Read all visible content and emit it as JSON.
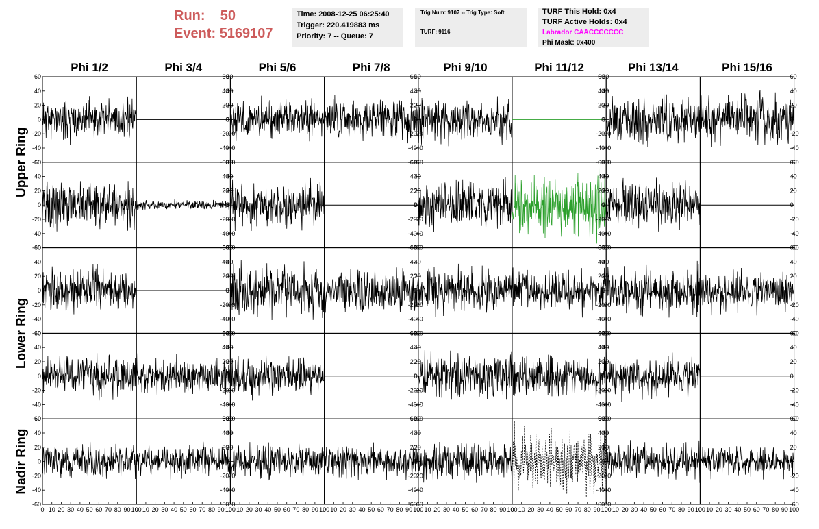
{
  "header": {
    "run_label": "Run:",
    "run_value": "50",
    "event_label": "Event:",
    "event_value": "5169107"
  },
  "info_boxes": {
    "time": "Time: 2008-12-25 06:25:40",
    "trigger": "Trigger: 220.419883 ms",
    "priority": "Priority: 7 -- Queue: 7",
    "trig_num": "Trig Num: 9107 -- Trig Type: Soft",
    "turf": "TURF: 9116",
    "turf_this_hold": "TURF This Hold: 0x4",
    "turf_active_holds": "TURF Active Holds: 0x4",
    "labrador": "Labrador CAACCCCCCC",
    "phi_mask": "Phi Mask: 0x400"
  },
  "colors": {
    "header_red": "#cd5c5c",
    "labrador_magenta": "#ff00ff",
    "trace_black": "#000000",
    "trace_green": "#2ca02c",
    "box_gray": "#ededed"
  },
  "chart_data": {
    "type": "line",
    "layout": "grid of waveform panels, 8 phi columns by 5 ring rows",
    "columns": [
      "Phi 1/2",
      "Phi 3/4",
      "Phi 5/6",
      "Phi 7/8",
      "Phi 9/10",
      "Phi 11/12",
      "Phi 13/14",
      "Phi 15/16"
    ],
    "row_labels": [
      {
        "label": "Upper Ring",
        "rows": [
          0,
          1
        ]
      },
      {
        "label": "Lower Ring",
        "rows": [
          2,
          3
        ]
      },
      {
        "label": "Nadir Ring",
        "rows": [
          4
        ]
      }
    ],
    "xlim": [
      0,
      100
    ],
    "ylim": [
      -60,
      60
    ],
    "x_tick_labels": [
      "0",
      "10",
      "20",
      "30",
      "40",
      "50",
      "60",
      "70",
      "80",
      "90",
      "100"
    ],
    "y_tick_labels": [
      "-60",
      "-40",
      "-20",
      "0",
      "20",
      "40",
      "60"
    ],
    "panels": [
      {
        "row": 0,
        "col": 0,
        "kind": "noise",
        "amplitude": 13,
        "seed": 11
      },
      {
        "row": 0,
        "col": 1,
        "kind": "flat"
      },
      {
        "row": 0,
        "col": 2,
        "kind": "noise",
        "amplitude": 13,
        "seed": 13
      },
      {
        "row": 0,
        "col": 3,
        "kind": "noise",
        "amplitude": 13,
        "seed": 14
      },
      {
        "row": 0,
        "col": 4,
        "kind": "noise",
        "amplitude": 14,
        "seed": 15
      },
      {
        "row": 0,
        "col": 5,
        "kind": "flat",
        "color": "green"
      },
      {
        "row": 0,
        "col": 6,
        "kind": "noise",
        "amplitude": 15,
        "seed": 17
      },
      {
        "row": 0,
        "col": 7,
        "kind": "noise",
        "amplitude": 15,
        "seed": 18,
        "end_spike": 52
      },
      {
        "row": 1,
        "col": 0,
        "kind": "noise",
        "amplitude": 15,
        "seed": 21
      },
      {
        "row": 1,
        "col": 1,
        "kind": "noise",
        "amplitude": 3,
        "seed": 22
      },
      {
        "row": 1,
        "col": 2,
        "kind": "noise",
        "amplitude": 15,
        "seed": 23
      },
      {
        "row": 1,
        "col": 3,
        "kind": "flat"
      },
      {
        "row": 1,
        "col": 4,
        "kind": "noise",
        "amplitude": 15,
        "seed": 25
      },
      {
        "row": 1,
        "col": 5,
        "kind": "noise",
        "amplitude": 20,
        "seed": 26,
        "color": "green"
      },
      {
        "row": 1,
        "col": 6,
        "kind": "noise",
        "amplitude": 14,
        "seed": 27
      },
      {
        "row": 1,
        "col": 7,
        "kind": "flat"
      },
      {
        "row": 2,
        "col": 0,
        "kind": "noise",
        "amplitude": 14,
        "seed": 31
      },
      {
        "row": 2,
        "col": 1,
        "kind": "flat"
      },
      {
        "row": 2,
        "col": 2,
        "kind": "noise",
        "amplitude": 17,
        "seed": 33
      },
      {
        "row": 2,
        "col": 3,
        "kind": "noise",
        "amplitude": 14,
        "seed": 34
      },
      {
        "row": 2,
        "col": 4,
        "kind": "noise",
        "amplitude": 14,
        "seed": 35
      },
      {
        "row": 2,
        "col": 5,
        "kind": "noise",
        "amplitude": 14,
        "seed": 36
      },
      {
        "row": 2,
        "col": 6,
        "kind": "noise",
        "amplitude": 15,
        "seed": 37
      },
      {
        "row": 2,
        "col": 7,
        "kind": "noise",
        "amplitude": 13,
        "seed": 38
      },
      {
        "row": 3,
        "col": 0,
        "kind": "noise",
        "amplitude": 13,
        "seed": 41
      },
      {
        "row": 3,
        "col": 1,
        "kind": "noise",
        "amplitude": 12,
        "seed": 42
      },
      {
        "row": 3,
        "col": 2,
        "kind": "noise",
        "amplitude": 13,
        "seed": 43
      },
      {
        "row": 3,
        "col": 3,
        "kind": "flat"
      },
      {
        "row": 3,
        "col": 4,
        "kind": "noise",
        "amplitude": 16,
        "seed": 45
      },
      {
        "row": 3,
        "col": 5,
        "kind": "noise",
        "amplitude": 13,
        "seed": 46
      },
      {
        "row": 3,
        "col": 6,
        "kind": "noise",
        "amplitude": 13,
        "seed": 47
      },
      {
        "row": 3,
        "col": 7,
        "kind": "flat"
      },
      {
        "row": 4,
        "col": 0,
        "kind": "noise",
        "amplitude": 11,
        "seed": 51
      },
      {
        "row": 4,
        "col": 1,
        "kind": "noise",
        "amplitude": 11,
        "seed": 52
      },
      {
        "row": 4,
        "col": 2,
        "kind": "noise",
        "amplitude": 11,
        "seed": 53
      },
      {
        "row": 4,
        "col": 3,
        "kind": "noise",
        "amplitude": 11,
        "seed": 54
      },
      {
        "row": 4,
        "col": 4,
        "kind": "noise",
        "amplitude": 12,
        "seed": 55
      },
      {
        "row": 4,
        "col": 5,
        "kind": "dashed",
        "amplitude": 20,
        "seed": 56
      },
      {
        "row": 4,
        "col": 6,
        "kind": "noise",
        "amplitude": 12,
        "seed": 57
      },
      {
        "row": 4,
        "col": 7,
        "kind": "noise",
        "amplitude": 10,
        "seed": 58
      }
    ]
  }
}
